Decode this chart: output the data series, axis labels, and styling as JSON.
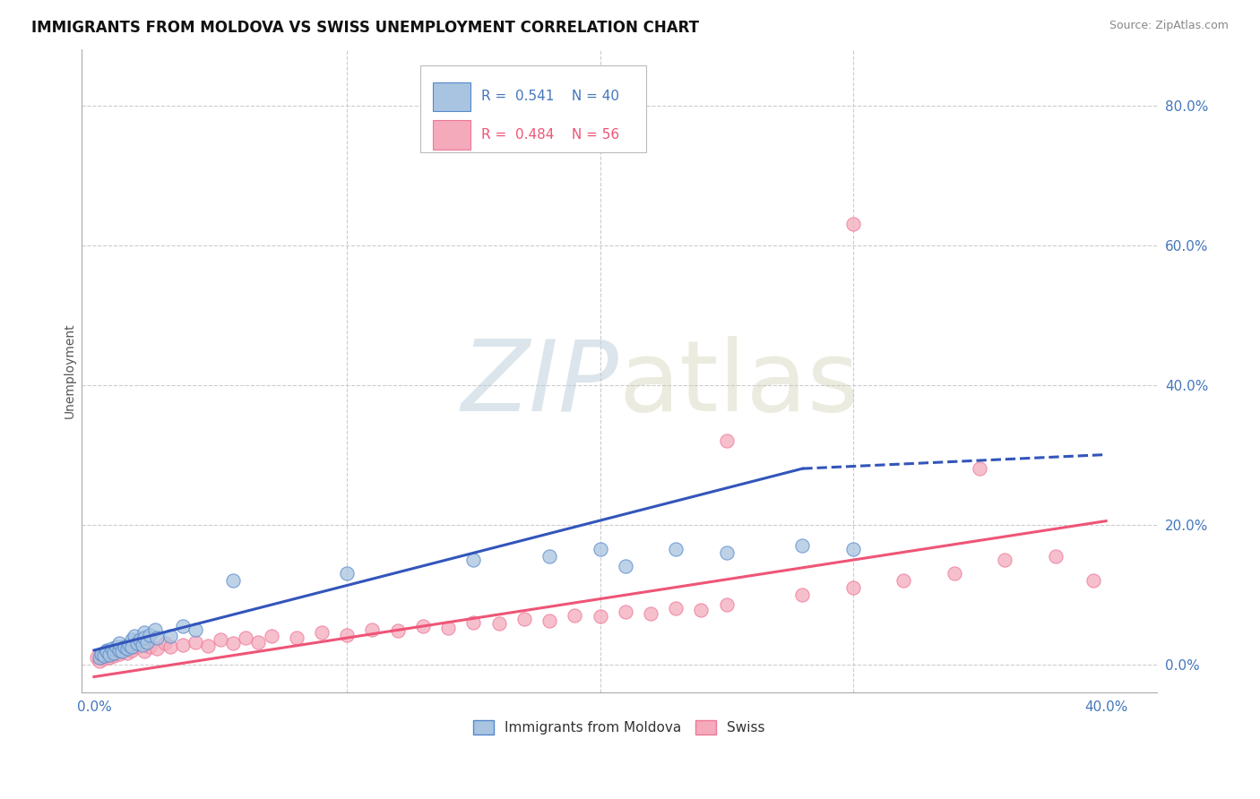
{
  "title": "IMMIGRANTS FROM MOLDOVA VS SWISS UNEMPLOYMENT CORRELATION CHART",
  "source": "Source: ZipAtlas.com",
  "ylabel": "Unemployment",
  "xlim": [
    -0.005,
    0.42
  ],
  "ylim": [
    -0.04,
    0.88
  ],
  "yticks": [
    0.0,
    0.2,
    0.4,
    0.6,
    0.8
  ],
  "xticks": [
    0.0,
    0.4
  ],
  "xticks_display": [
    0.0,
    0.1,
    0.2,
    0.3,
    0.4
  ],
  "legend_blue_label": "Immigrants from Moldova",
  "legend_pink_label": "Swiss",
  "r_blue": 0.541,
  "n_blue": 40,
  "r_pink": 0.484,
  "n_pink": 56,
  "blue_fill": "#A8C4E0",
  "pink_fill": "#F4AABB",
  "blue_edge": "#5588CC",
  "pink_edge": "#EE7799",
  "blue_line": "#3355BB",
  "pink_line": "#EE5577",
  "title_fontsize": 12,
  "tick_color": "#4477BB",
  "blue_scatter_x": [
    0.002,
    0.003,
    0.004,
    0.005,
    0.005,
    0.006,
    0.007,
    0.008,
    0.009,
    0.01,
    0.01,
    0.011,
    0.012,
    0.013,
    0.014,
    0.015,
    0.015,
    0.016,
    0.017,
    0.018,
    0.019,
    0.02,
    0.02,
    0.021,
    0.022,
    0.024,
    0.025,
    0.03,
    0.035,
    0.04,
    0.055,
    0.1,
    0.15,
    0.18,
    0.2,
    0.21,
    0.23,
    0.25,
    0.28,
    0.3
  ],
  "blue_scatter_y": [
    0.01,
    0.015,
    0.012,
    0.02,
    0.018,
    0.014,
    0.022,
    0.016,
    0.025,
    0.02,
    0.03,
    0.018,
    0.025,
    0.022,
    0.028,
    0.035,
    0.025,
    0.04,
    0.03,
    0.035,
    0.028,
    0.045,
    0.038,
    0.032,
    0.042,
    0.05,
    0.038,
    0.04,
    0.055,
    0.05,
    0.12,
    0.13,
    0.15,
    0.155,
    0.165,
    0.14,
    0.165,
    0.16,
    0.17,
    0.165
  ],
  "pink_scatter_x": [
    0.001,
    0.002,
    0.003,
    0.004,
    0.005,
    0.006,
    0.007,
    0.008,
    0.009,
    0.01,
    0.011,
    0.012,
    0.013,
    0.015,
    0.017,
    0.02,
    0.022,
    0.025,
    0.028,
    0.03,
    0.035,
    0.04,
    0.045,
    0.05,
    0.055,
    0.06,
    0.065,
    0.07,
    0.08,
    0.09,
    0.1,
    0.11,
    0.12,
    0.13,
    0.14,
    0.15,
    0.16,
    0.17,
    0.18,
    0.19,
    0.2,
    0.21,
    0.22,
    0.23,
    0.24,
    0.25,
    0.28,
    0.3,
    0.32,
    0.34,
    0.36,
    0.38,
    0.395,
    0.25,
    0.3,
    0.35
  ],
  "pink_scatter_y": [
    0.01,
    0.005,
    0.012,
    0.008,
    0.015,
    0.01,
    0.018,
    0.012,
    0.02,
    0.015,
    0.018,
    0.022,
    0.016,
    0.02,
    0.025,
    0.018,
    0.025,
    0.022,
    0.03,
    0.025,
    0.028,
    0.032,
    0.026,
    0.035,
    0.03,
    0.038,
    0.032,
    0.04,
    0.038,
    0.045,
    0.042,
    0.05,
    0.048,
    0.055,
    0.052,
    0.06,
    0.058,
    0.065,
    0.062,
    0.07,
    0.068,
    0.075,
    0.072,
    0.08,
    0.078,
    0.085,
    0.1,
    0.11,
    0.12,
    0.13,
    0.15,
    0.155,
    0.12,
    0.32,
    0.63,
    0.28
  ],
  "blue_trend": [
    0.0,
    0.28,
    0.02,
    0.28
  ],
  "blue_trend_dash": [
    0.28,
    0.4,
    0.28,
    0.3
  ],
  "pink_trend": [
    0.0,
    0.4,
    -0.018,
    0.205
  ]
}
